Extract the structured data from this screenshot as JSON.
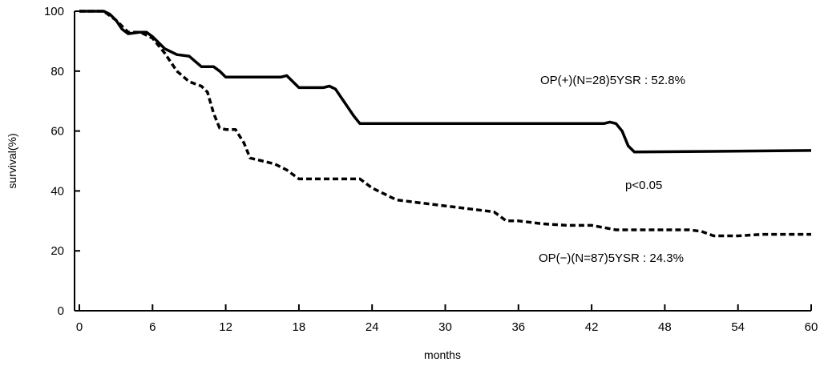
{
  "chart_data": {
    "type": "line",
    "title": "",
    "xlabel": "months",
    "ylabel": "survival(%)",
    "xlim": [
      0,
      60
    ],
    "ylim": [
      0,
      100
    ],
    "xticks": [
      "0",
      "6",
      "12",
      "18",
      "24",
      "30",
      "36",
      "42",
      "48",
      "54",
      "60"
    ],
    "yticks": [
      "0",
      "20",
      "40",
      "60",
      "80",
      "100"
    ],
    "grid": false,
    "series": [
      {
        "line_style": "solid",
        "x": [
          0,
          2,
          2.5,
          3,
          3.5,
          4,
          5,
          5.5,
          6,
          7,
          8,
          9,
          10,
          11,
          11.5,
          12,
          16.5,
          17,
          18,
          20,
          20.5,
          21,
          22,
          22.5,
          23,
          43,
          43.5,
          44,
          44.5,
          45,
          45.5,
          60
        ],
        "y": [
          100,
          100,
          99,
          97,
          94,
          92.5,
          93,
          93,
          91.5,
          87.5,
          85.5,
          85,
          81.5,
          81.5,
          80,
          78,
          78,
          78.5,
          74.5,
          74.5,
          75,
          74,
          68,
          65,
          62.5,
          62.5,
          63,
          62.5,
          60,
          55,
          53,
          53.5
        ]
      },
      {
        "line_style": "dashed",
        "x": [
          0,
          2,
          3,
          4,
          5,
          6,
          7,
          8,
          9,
          10,
          10.5,
          11,
          11.5,
          12,
          12.8,
          13.5,
          14,
          15,
          16,
          17,
          18,
          19,
          20,
          21,
          22,
          23,
          24,
          25,
          26,
          28,
          30,
          32,
          34,
          35,
          36,
          38,
          40,
          42,
          44,
          46,
          48,
          50,
          51,
          52,
          54,
          56,
          58,
          60
        ],
        "y": [
          100,
          100,
          97,
          93,
          93,
          91,
          86,
          80,
          76.5,
          75,
          73,
          66,
          61,
          60.5,
          60.5,
          56,
          51,
          50,
          49,
          47,
          44,
          44,
          44,
          44,
          44,
          44,
          41,
          39,
          37,
          36,
          35,
          34,
          33,
          30,
          30,
          29,
          28.5,
          28.5,
          27,
          27,
          27,
          27,
          26.5,
          25,
          25,
          25.5,
          25.5,
          25.5
        ]
      }
    ],
    "annotations": {
      "op_plus": "OP(+)(N=28)5YSR : 52.8%",
      "p_value": "p<0.05",
      "op_minus": "OP(−)(N=87)5YSR : 24.3%"
    }
  }
}
